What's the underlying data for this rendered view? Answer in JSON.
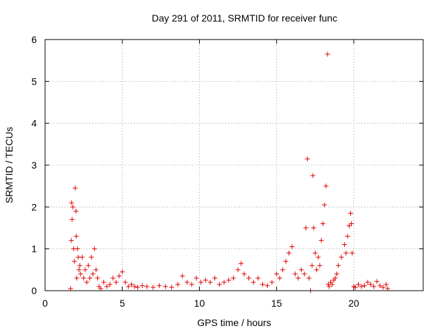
{
  "chart_data": {
    "type": "scatter",
    "title": "Day 291 of 2011, SRMTID for receiver func",
    "xlabel": "GPS time / hours",
    "ylabel": "SRMTID / TECUs",
    "xlim": [
      0,
      24.5
    ],
    "ylim": [
      0,
      6
    ],
    "x_ticks": [
      0,
      5,
      10,
      15,
      20
    ],
    "y_ticks": [
      0,
      1,
      2,
      3,
      4,
      5,
      6
    ],
    "grid": true,
    "marker": "+",
    "color": "#e00000",
    "series": [
      {
        "name": "SRMTID",
        "x": [
          1.65,
          1.7,
          1.72,
          1.75,
          1.8,
          1.85,
          1.9,
          1.95,
          2.0,
          2.02,
          2.05,
          2.1,
          2.15,
          2.2,
          2.25,
          2.3,
          2.4,
          2.5,
          2.6,
          2.7,
          2.8,
          2.9,
          3.0,
          3.1,
          3.2,
          3.3,
          3.4,
          3.5,
          3.6,
          3.8,
          4.0,
          4.2,
          4.4,
          4.6,
          4.8,
          5.0,
          5.2,
          5.4,
          5.6,
          5.8,
          6.0,
          6.3,
          6.6,
          7.0,
          7.4,
          7.8,
          8.2,
          8.6,
          8.9,
          9.2,
          9.5,
          9.8,
          10.1,
          10.4,
          10.7,
          11.0,
          11.3,
          11.6,
          11.9,
          12.2,
          12.5,
          12.7,
          12.9,
          13.2,
          13.5,
          13.8,
          14.1,
          14.4,
          14.7,
          15.0,
          15.2,
          15.4,
          15.6,
          15.8,
          16.0,
          16.2,
          16.4,
          16.6,
          16.8,
          16.9,
          17.0,
          17.1,
          17.2,
          17.3,
          17.35,
          17.4,
          17.5,
          17.6,
          17.7,
          17.8,
          17.9,
          18.0,
          18.1,
          18.2,
          18.3,
          18.35,
          18.4,
          18.5,
          18.6,
          18.7,
          18.8,
          18.9,
          19.0,
          19.2,
          19.4,
          19.5,
          19.6,
          19.7,
          19.8,
          19.85,
          19.9,
          20.0,
          20.1,
          20.3,
          20.5,
          20.7,
          20.9,
          21.1,
          21.3,
          21.5,
          21.7,
          21.9,
          22.1,
          22.2
        ],
        "y": [
          0.05,
          1.2,
          2.1,
          1.7,
          2.0,
          1.0,
          0.7,
          2.45,
          1.9,
          1.3,
          0.3,
          1.0,
          0.8,
          0.5,
          0.6,
          0.4,
          0.8,
          0.3,
          0.5,
          0.2,
          0.6,
          0.3,
          0.8,
          0.4,
          1.0,
          0.5,
          0.3,
          0.1,
          0.05,
          0.2,
          0.1,
          0.15,
          0.3,
          0.2,
          0.35,
          0.45,
          0.2,
          0.1,
          0.15,
          0.1,
          0.08,
          0.12,
          0.1,
          0.08,
          0.12,
          0.1,
          0.08,
          0.15,
          0.35,
          0.2,
          0.15,
          0.3,
          0.2,
          0.25,
          0.2,
          0.3,
          0.15,
          0.2,
          0.25,
          0.3,
          0.5,
          0.65,
          0.4,
          0.3,
          0.2,
          0.3,
          0.15,
          0.12,
          0.2,
          0.4,
          0.3,
          0.5,
          0.7,
          0.9,
          1.05,
          0.4,
          0.3,
          0.5,
          0.4,
          1.5,
          3.15,
          0.3,
          0.0,
          0.6,
          2.75,
          1.5,
          0.9,
          0.5,
          0.8,
          0.6,
          1.2,
          1.6,
          2.05,
          2.5,
          5.65,
          0.15,
          0.1,
          0.2,
          0.15,
          0.25,
          0.3,
          0.4,
          0.6,
          0.8,
          1.1,
          0.9,
          1.3,
          1.55,
          1.85,
          1.6,
          0.9,
          0.1,
          0.08,
          0.15,
          0.1,
          0.12,
          0.2,
          0.15,
          0.1,
          0.22,
          0.12,
          0.08,
          0.15,
          0.05
        ]
      }
    ]
  }
}
